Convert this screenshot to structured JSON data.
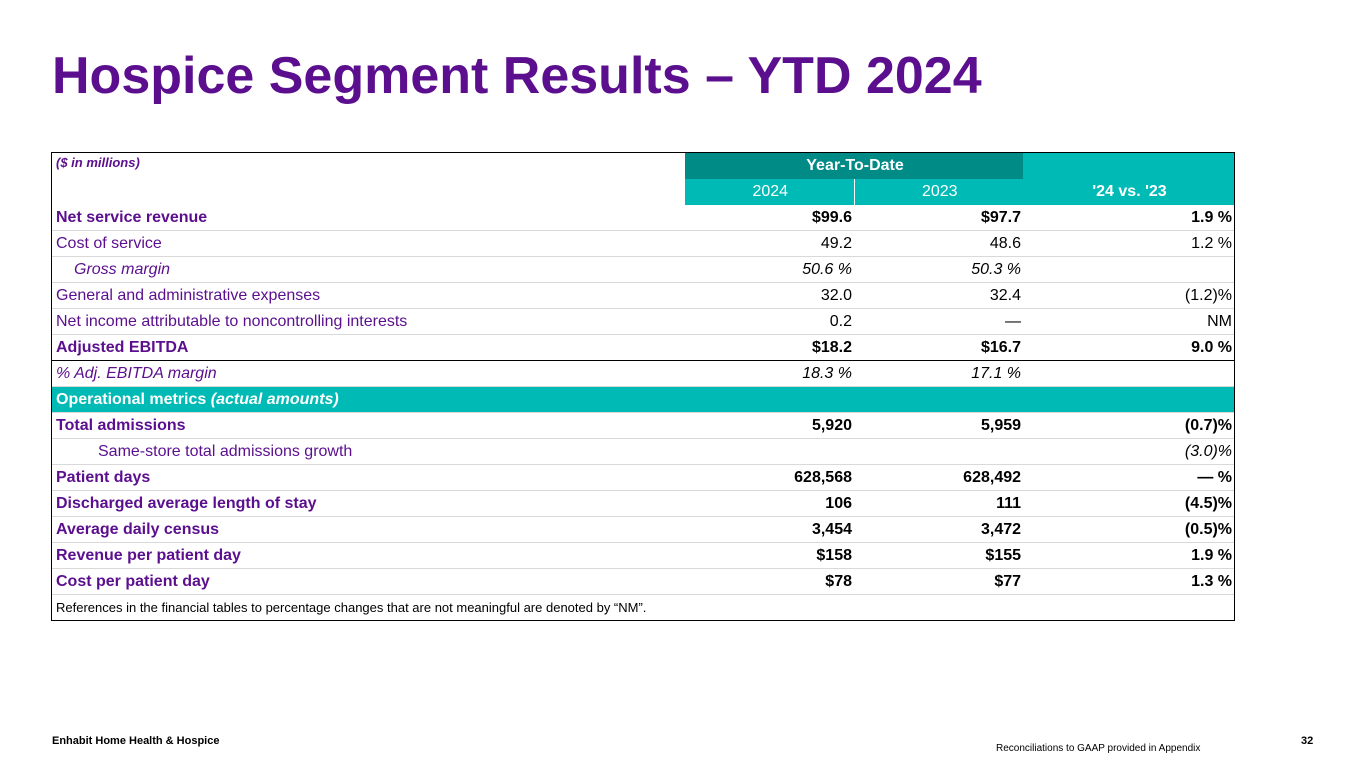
{
  "title": "Hospice Segment Results – YTD 2024",
  "table": {
    "unit_note": "($ in millions)",
    "group_header": "Year-To-Date",
    "year_headers": [
      "2024",
      "2023"
    ],
    "change_header": "'24 vs. '23",
    "rows": [
      {
        "label": "Net service revenue",
        "y2024": "$99.6",
        "y2023": "$97.7",
        "change": "1.9 %"
      },
      {
        "label": "Cost of service",
        "y2024": "49.2",
        "y2023": "48.6",
        "change": "1.2 %"
      },
      {
        "label": "Gross margin",
        "y2024": "50.6 %",
        "y2023": "50.3 %",
        "change": ""
      },
      {
        "label": "General and administrative expenses",
        "y2024": "32.0",
        "y2023": "32.4",
        "change": "(1.2)%"
      },
      {
        "label": "Net income attributable to noncontrolling interests",
        "y2024": "0.2",
        "y2023": "—",
        "change": "NM"
      },
      {
        "label": "Adjusted EBITDA",
        "y2024": "$18.2",
        "y2023": "$16.7",
        "change": "9.0 %"
      },
      {
        "label": "% Adj. EBITDA margin",
        "y2024": "18.3 %",
        "y2023": "17.1 %",
        "change": ""
      }
    ],
    "section": {
      "label": "Operational metrics",
      "note": "(actual amounts)"
    },
    "metrics": [
      {
        "label": "Total admissions",
        "y2024": "5,920",
        "y2023": "5,959",
        "change": "(0.7)%"
      },
      {
        "label": "Same-store total admissions growth",
        "y2024": "",
        "y2023": "",
        "change": "(3.0)%"
      },
      {
        "label": "Patient days",
        "y2024": "628,568",
        "y2023": "628,492",
        "change": "— %"
      },
      {
        "label": "Discharged average length of stay",
        "y2024": "106",
        "y2023": "111",
        "change": "(4.5)%"
      },
      {
        "label": "Average daily census",
        "y2024": "3,454",
        "y2023": "3,472",
        "change": "(0.5)%"
      },
      {
        "label": "Revenue per patient day",
        "y2024": "$158",
        "y2023": "$155",
        "change": "1.9 %"
      },
      {
        "label": "Cost per patient day",
        "y2024": "$78",
        "y2023": "$77",
        "change": "1.3 %"
      }
    ],
    "footnote": "References in the financial tables to percentage changes that are not meaningful are denoted by  “NM”."
  },
  "footer": {
    "company": "Enhabit Home Health & Hospice",
    "reconciliation_note": "Reconciliations to GAAP provided in Appendix",
    "page_number": "32"
  },
  "colors": {
    "title_purple": "#5b0f8e",
    "header_teal_dark": "#008b87",
    "header_teal": "#00bbb5"
  }
}
